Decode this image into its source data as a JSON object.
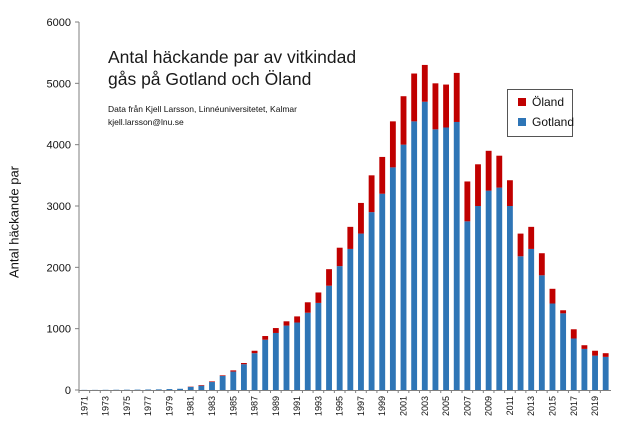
{
  "chart_data": {
    "type": "bar",
    "stacked": true,
    "title_lines": [
      "Antal häckande par av vitkindad",
      "gås på Gotland och Öland"
    ],
    "source_lines": [
      "Data från Kjell Larsson, Linnéuniversitetet, Kalmar",
      "kjell.larsson@lnu.se"
    ],
    "ylabel": "Antal häckande par",
    "ylim": [
      0,
      6000
    ],
    "yticks": [
      0,
      1000,
      2000,
      3000,
      4000,
      5000,
      6000
    ],
    "categories": [
      1971,
      1972,
      1973,
      1974,
      1975,
      1976,
      1977,
      1978,
      1979,
      1980,
      1981,
      1982,
      1983,
      1984,
      1985,
      1986,
      1987,
      1988,
      1989,
      1990,
      1991,
      1992,
      1993,
      1994,
      1995,
      1996,
      1997,
      1998,
      1999,
      2000,
      2001,
      2002,
      2003,
      2004,
      2005,
      2006,
      2007,
      2008,
      2009,
      2010,
      2011,
      2012,
      2013,
      2014,
      2015,
      2016,
      2017,
      2018,
      2019,
      2020
    ],
    "x_tick_labels": [
      "1971",
      "1973",
      "1975",
      "1977",
      "1979",
      "1981",
      "1983",
      "1985",
      "1987",
      "1989",
      "1991",
      "1993",
      "1995",
      "1997",
      "1999",
      "2001",
      "2003",
      "2005",
      "2007",
      "2009",
      "2011",
      "2013",
      "2015",
      "2017",
      "2019"
    ],
    "series": [
      {
        "name": "Gotland",
        "color": "#2e75b6",
        "values": [
          2,
          2,
          3,
          4,
          5,
          6,
          8,
          10,
          15,
          20,
          50,
          70,
          130,
          230,
          300,
          420,
          600,
          820,
          930,
          1050,
          1100,
          1260,
          1420,
          1700,
          2020,
          2300,
          2550,
          2900,
          3200,
          3630,
          4000,
          4380,
          4700,
          4250,
          4280,
          4370,
          2750,
          3000,
          3250,
          3300,
          3000,
          2180,
          2300,
          1870,
          1410,
          1250,
          840,
          670,
          560,
          540
        ]
      },
      {
        "name": "Öland",
        "color": "#c00000",
        "values": [
          0,
          0,
          0,
          0,
          0,
          0,
          0,
          0,
          0,
          0,
          5,
          10,
          10,
          10,
          20,
          20,
          40,
          60,
          80,
          70,
          100,
          170,
          170,
          270,
          300,
          360,
          500,
          600,
          600,
          750,
          790,
          780,
          600,
          750,
          700,
          800,
          650,
          680,
          650,
          520,
          420,
          370,
          360,
          360,
          240,
          50,
          150,
          60,
          80,
          60
        ]
      }
    ],
    "legend_position": "top-right",
    "grid": false
  }
}
